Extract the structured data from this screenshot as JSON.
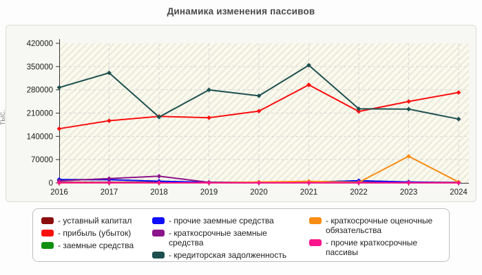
{
  "title": "Динамика изменения пассивов",
  "chart_data": {
    "type": "line",
    "title": "Динамика изменения пассивов",
    "x": [
      2016,
      2017,
      2018,
      2019,
      2020,
      2021,
      2022,
      2023,
      2024
    ],
    "xlabel": "",
    "ylabel": "тыс.",
    "ylim": [
      0,
      420000
    ],
    "ytick_step": 70000,
    "grid": true,
    "legend_position": "bottom",
    "plot_bg": "#fbfaee",
    "hatch_color": "#eceadb",
    "grid_color": "#d8d8d8",
    "axis_color": "#333333",
    "series": [
      {
        "name": "уставный капитал",
        "color": "#8b0e0e",
        "values": [
          1600,
          1600,
          1600,
          1600,
          1600,
          1600,
          1600,
          1600,
          1600
        ]
      },
      {
        "name": "прибыль (убыток)",
        "color": "#fa0f0f",
        "values": [
          163000,
          187000,
          200000,
          196000,
          216000,
          295000,
          215000,
          245000,
          272000
        ]
      },
      {
        "name": "заемные средства",
        "color": "#0f8f0f",
        "values": [
          10000,
          9500,
          5000,
          1500,
          1000,
          2000,
          6500,
          2500,
          500
        ]
      },
      {
        "name": "прочие заемные средства",
        "color": "#0d0dff",
        "values": [
          10000,
          9500,
          5000,
          1500,
          1000,
          2000,
          6500,
          2500,
          500
        ]
      },
      {
        "name": "краткосрочные заемные средства",
        "color": "#8b158b",
        "values": [
          6000,
          13000,
          20000,
          1500,
          700,
          700,
          700,
          700,
          700
        ]
      },
      {
        "name": "кредиторская задолженность",
        "color": "#1d4f4f",
        "values": [
          287000,
          331000,
          198000,
          280000,
          262000,
          354000,
          223000,
          222000,
          192000
        ]
      },
      {
        "name": "краткосрочные оценочные обязательства",
        "color": "#f98c14",
        "values": [
          0,
          0,
          0,
          0,
          2500,
          4500,
          1500,
          80000,
          2500
        ]
      },
      {
        "name": "прочие краткосрочные пассивы",
        "color": "#fb148c",
        "values": [
          300,
          300,
          300,
          300,
          300,
          300,
          300,
          300,
          300
        ]
      }
    ]
  }
}
